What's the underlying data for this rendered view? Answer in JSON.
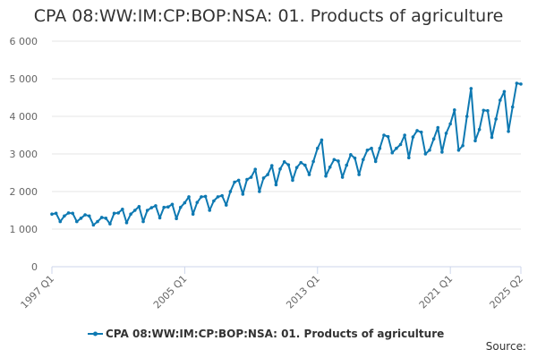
{
  "chart_data": {
    "type": "line",
    "title": "CPA 08:WW:IM:CP:BOP:NSA: 01. Products of agriculture",
    "xlabel": "",
    "ylabel": "",
    "ylim": [
      0,
      6000
    ],
    "yticks": [
      "0",
      "1 000",
      "2 000",
      "3 000",
      "4 000",
      "5 000",
      "6 000"
    ],
    "ytick_values": [
      0,
      1000,
      2000,
      3000,
      4000,
      5000,
      6000
    ],
    "xticks": [
      "1997 Q1",
      "2005 Q1",
      "2013 Q1",
      "2021 Q1",
      "2025 Q2"
    ],
    "xtick_index": [
      0,
      32,
      64,
      96,
      113
    ],
    "grid": true,
    "legend_position": "bottom",
    "color": "#0e79b2",
    "series": [
      {
        "name": "CPA 08:WW:IM:CP:BOP:NSA: 01. Products of agriculture",
        "values": [
          1400,
          1420,
          1200,
          1350,
          1430,
          1420,
          1200,
          1290,
          1380,
          1350,
          1110,
          1200,
          1310,
          1290,
          1140,
          1420,
          1430,
          1530,
          1170,
          1400,
          1500,
          1600,
          1200,
          1500,
          1570,
          1620,
          1300,
          1580,
          1590,
          1660,
          1280,
          1580,
          1700,
          1860,
          1400,
          1710,
          1860,
          1870,
          1500,
          1750,
          1860,
          1890,
          1640,
          2000,
          2250,
          2300,
          1930,
          2320,
          2380,
          2590,
          2000,
          2360,
          2450,
          2690,
          2180,
          2600,
          2790,
          2710,
          2300,
          2640,
          2770,
          2700,
          2450,
          2800,
          3150,
          3370,
          2410,
          2650,
          2850,
          2810,
          2380,
          2700,
          2980,
          2890,
          2450,
          2850,
          3100,
          3150,
          2800,
          3150,
          3500,
          3460,
          3030,
          3150,
          3250,
          3500,
          2900,
          3450,
          3620,
          3580,
          3000,
          3100,
          3400,
          3700,
          3050,
          3550,
          3800,
          4170,
          3100,
          3220,
          4000,
          4740,
          3350,
          3650,
          4160,
          4150,
          3440,
          3930,
          4430,
          4660,
          3600,
          4250,
          4880,
          4860
        ]
      }
    ]
  },
  "source_label": "Source:"
}
